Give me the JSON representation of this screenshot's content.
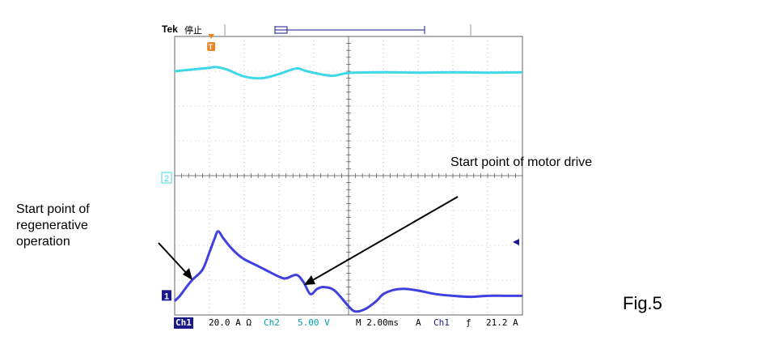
{
  "scope": {
    "brand": "Tek",
    "acq_state": "停止",
    "ch2_marker": "2",
    "ch1_marker": "1",
    "trigger_marker": "T",
    "status": {
      "ch1_label": "Ch1",
      "ch1_scale": "20.0 A Ω",
      "ch2_label": "Ch2",
      "ch2_scale": "5.00 V",
      "timebase": "M 2.00ms",
      "trigger_mode": "A",
      "trigger_source": "Ch1",
      "trigger_slope": "ƒ",
      "trigger_level": "21.2 A"
    },
    "colors": {
      "ch1": "#4040e0",
      "ch2": "#3fd8e8",
      "trigger": "#e8862a",
      "grid": "#888888"
    }
  },
  "annotations": {
    "regen": [
      "Start point of",
      "regenerative",
      "operation"
    ],
    "motor": "Start point of motor drive"
  },
  "figure_label": "Fig.5",
  "chart_data": {
    "type": "line",
    "xlabel": "",
    "ylabel": "",
    "grid": true,
    "x_units": "divisions",
    "xlim": [
      0,
      10
    ],
    "ylim": [
      0,
      8
    ],
    "series": [
      {
        "name": "Ch2",
        "x": [
          0,
          0.5,
          1,
          1.2,
          1.5,
          2,
          2.5,
          3,
          3.5,
          3.8,
          4.5,
          5,
          6,
          7,
          8,
          9,
          10
        ],
        "y": [
          7.0,
          7.05,
          7.1,
          7.12,
          7.05,
          6.85,
          6.8,
          6.92,
          7.08,
          7.0,
          6.87,
          6.95,
          6.97,
          6.96,
          6.97,
          6.96,
          6.97
        ]
      },
      {
        "name": "Ch1",
        "x": [
          0,
          0.15,
          0.3,
          0.5,
          0.8,
          1,
          1.15,
          1.25,
          1.4,
          1.6,
          1.8,
          2,
          2.3,
          2.6,
          3,
          3.2,
          3.5,
          3.7,
          3.9,
          4.1,
          4.3,
          4.6,
          5,
          5.2,
          5.5,
          5.8,
          6,
          6.3,
          6.6,
          7,
          7.5,
          8,
          8.5,
          9,
          9.5,
          10
        ],
        "y": [
          0.4,
          0.55,
          0.75,
          1.0,
          1.3,
          1.8,
          2.2,
          2.4,
          2.2,
          1.95,
          1.75,
          1.6,
          1.45,
          1.3,
          1.1,
          1.05,
          1.15,
          0.95,
          0.6,
          0.75,
          0.8,
          0.7,
          0.25,
          0.1,
          0.18,
          0.4,
          0.6,
          0.72,
          0.75,
          0.7,
          0.6,
          0.55,
          0.52,
          0.55,
          0.55,
          0.55
        ]
      }
    ]
  }
}
